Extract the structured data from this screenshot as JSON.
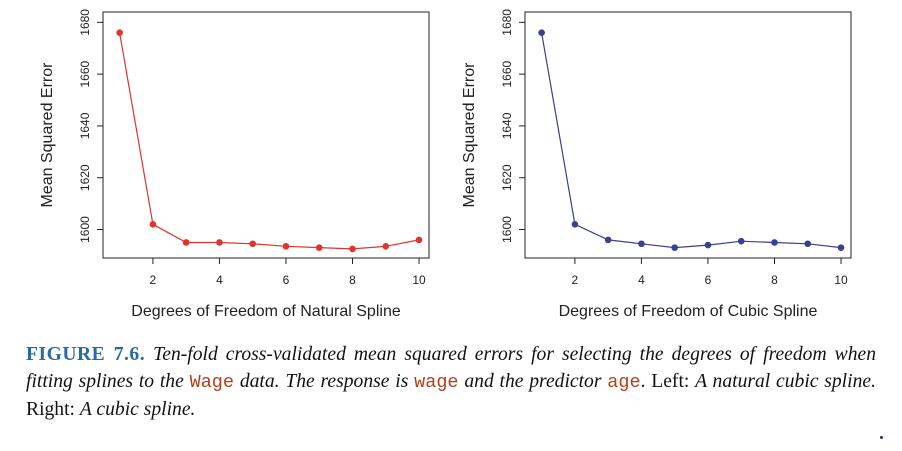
{
  "chart_data": [
    {
      "type": "line",
      "xlabel": "Degrees of Freedom of Natural Spline",
      "ylabel": "Mean Squared Error",
      "x": [
        1,
        2,
        3,
        4,
        5,
        6,
        7,
        8,
        9,
        10
      ],
      "y": [
        1676,
        1602,
        1595,
        1595,
        1594.5,
        1593.5,
        1593,
        1592.5,
        1593.5,
        1596
      ],
      "xlim": [
        0.5,
        10.3
      ],
      "ylim": [
        1589,
        1684
      ],
      "xticks": [
        2,
        4,
        6,
        8,
        10
      ],
      "yticks": [
        1600,
        1620,
        1640,
        1660,
        1680
      ],
      "color": "#e0332e",
      "grid": false
    },
    {
      "type": "line",
      "xlabel": "Degrees of Freedom of Cubic Spline",
      "ylabel": "Mean Squared Error",
      "x": [
        1,
        2,
        3,
        4,
        5,
        6,
        7,
        8,
        9,
        10
      ],
      "y": [
        1676,
        1602,
        1596,
        1594.5,
        1593,
        1594,
        1595.5,
        1595,
        1594.5,
        1593
      ],
      "xlim": [
        0.5,
        10.3
      ],
      "ylim": [
        1589,
        1684
      ],
      "xticks": [
        2,
        4,
        6,
        8,
        10
      ],
      "yticks": [
        1600,
        1620,
        1640,
        1660,
        1680
      ],
      "color": "#3a3f8f",
      "grid": false
    }
  ],
  "caption": {
    "label": "FIGURE 7.6.",
    "part1": "Ten-fold cross-validated mean squared errors for selecting the degrees of freedom when fitting splines to the",
    "code1": "Wage",
    "part2": "data. The response is",
    "code2": "wage",
    "part3": "and the predictor",
    "code3": "age",
    "part4": ". Left:",
    "part5": "A natural cubic spline.",
    "part6": "Right:",
    "part7": "A cubic spline."
  }
}
